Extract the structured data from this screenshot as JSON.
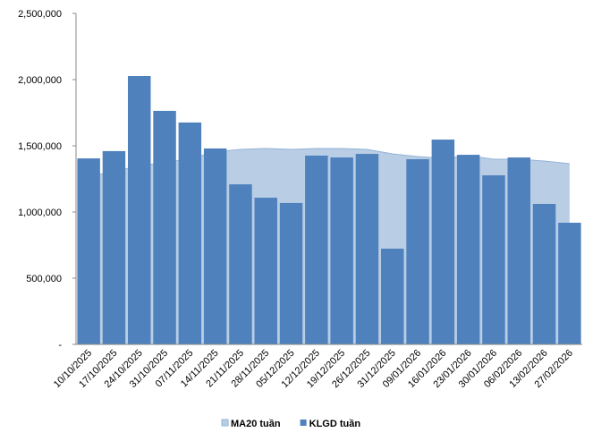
{
  "chart_data": {
    "type": "bar-area",
    "categories": [
      "10/10/2025",
      "17/10/2025",
      "24/10/2025",
      "31/10/2025",
      "07/11/2025",
      "14/11/2025",
      "21/11/2025",
      "28/11/2025",
      "05/12/2025",
      "12/12/2025",
      "19/12/2025",
      "26/12/2025",
      "31/12/2025",
      "09/01/2026",
      "16/01/2026",
      "23/01/2026",
      "30/01/2026",
      "06/02/2026",
      "13/02/2026",
      "27/02/2026"
    ],
    "series": [
      {
        "name": "MA20 tuần",
        "type": "area",
        "color": "#b9cde5",
        "line_color": "#95b3d7",
        "values": [
          1270000,
          1304000,
          1351000,
          1372000,
          1405000,
          1453000,
          1473000,
          1480000,
          1473000,
          1480000,
          1480000,
          1473000,
          1439000,
          1419000,
          1405000,
          1426000,
          1399000,
          1399000,
          1385000,
          1365000
        ]
      },
      {
        "name": "KLGD tuần",
        "type": "bar",
        "color": "#4f81bd",
        "values": [
          1405000,
          1460000,
          2027000,
          1764000,
          1676000,
          1480000,
          1209000,
          1108000,
          1068000,
          1426000,
          1412000,
          1439000,
          723000,
          1399000,
          1547000,
          1432000,
          1277000,
          1412000,
          1061000,
          919000
        ]
      }
    ],
    "ylim": [
      0,
      2500000
    ],
    "yticks": [
      {
        "value": 0,
        "label": "-"
      },
      {
        "value": 500000,
        "label": "500,000"
      },
      {
        "value": 1000000,
        "label": "1,000,000"
      },
      {
        "value": 1500000,
        "label": "1,500,000"
      },
      {
        "value": 2000000,
        "label": "2,000,000"
      },
      {
        "value": 2500000,
        "label": "2,500,000"
      }
    ],
    "legend": "bottom"
  }
}
